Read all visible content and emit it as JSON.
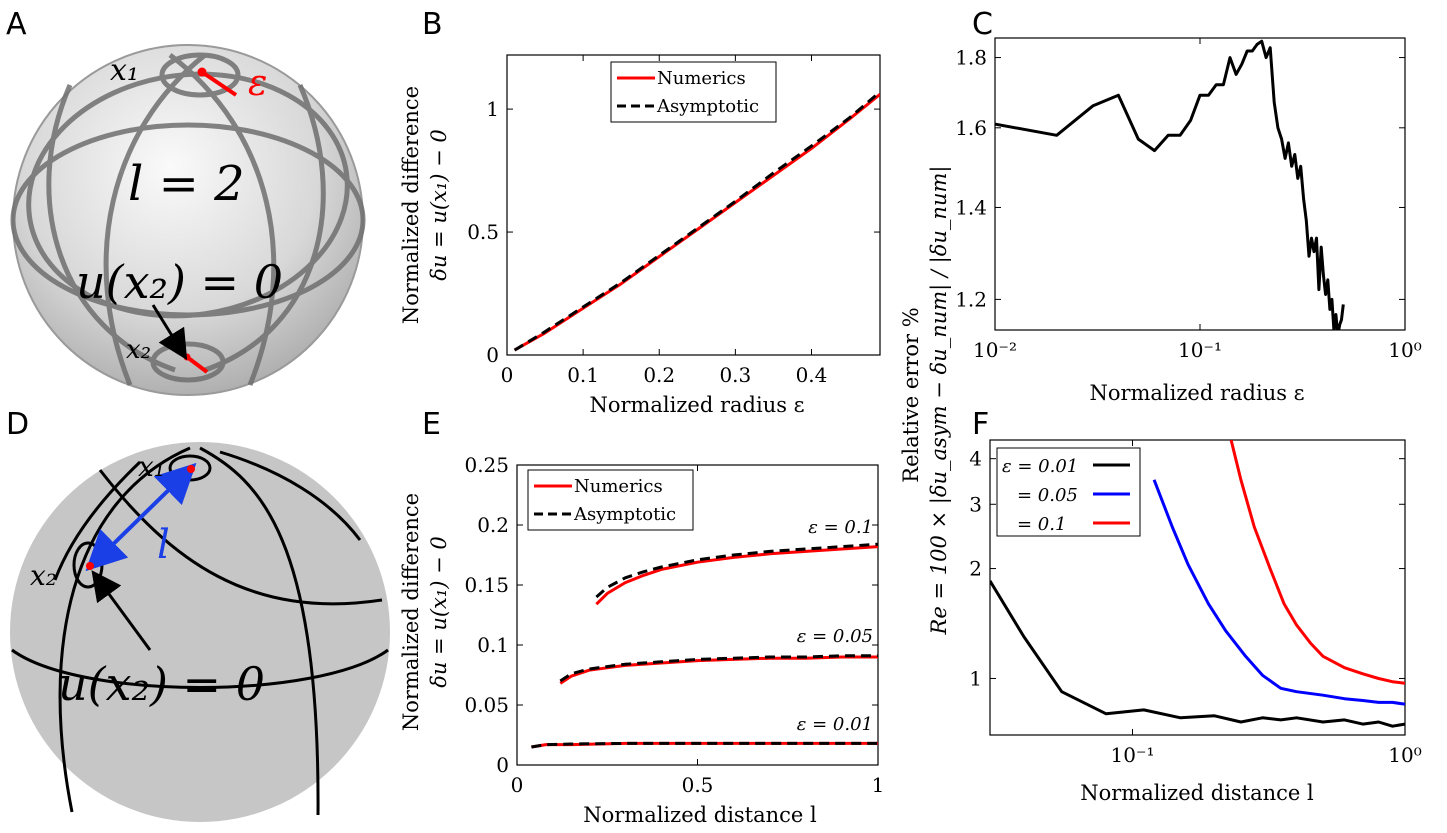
{
  "panels": {
    "A": {
      "letter": "A",
      "label_x1": "x₁",
      "label_eps": "ε",
      "label_l": "l = 2",
      "label_u": "u(x₂) = 0",
      "label_x2": "x₂"
    },
    "D": {
      "letter": "D",
      "label_x1": "x₁",
      "label_l": "l",
      "label_x2": "x₂",
      "label_u": "u(x₂) = 0"
    },
    "B": {
      "letter": "B"
    },
    "C": {
      "letter": "C"
    },
    "E": {
      "letter": "E"
    },
    "F": {
      "letter": "F"
    }
  },
  "colors": {
    "numerics": "#ff0000",
    "asymptotic": "#000000",
    "eps001": "#000000",
    "eps005": "#0000ff",
    "eps01": "#ff0000",
    "arrow_l": "#1a3fe6"
  },
  "chart_data": [
    {
      "id": "B",
      "type": "line",
      "xlabel": "Normalized radius ε",
      "ylabel_line1": "Normalized difference",
      "ylabel_line2": "δu = u(x₁) − 0",
      "xlim": [
        0,
        0.49
      ],
      "ylim": [
        0,
        1.22
      ],
      "xticks": [
        0,
        0.1,
        0.2,
        0.3,
        0.4
      ],
      "xtick_labels": [
        "0",
        "0.1",
        "0.2",
        "0.3",
        "0.4"
      ],
      "yticks": [
        0,
        0.5,
        1
      ],
      "ytick_labels": [
        "0",
        "0.5",
        "1"
      ],
      "legend": [
        "Numerics",
        "Asymptotic"
      ],
      "legend_position": "top",
      "series": [
        {
          "name": "Numerics",
          "style": "solid",
          "x": [
            0.01,
            0.05,
            0.1,
            0.15,
            0.2,
            0.25,
            0.3,
            0.35,
            0.4,
            0.45,
            0.49
          ],
          "y": [
            0.02,
            0.09,
            0.19,
            0.29,
            0.4,
            0.51,
            0.62,
            0.73,
            0.84,
            0.96,
            1.06
          ]
        },
        {
          "name": "Asymptotic",
          "style": "dashed",
          "x": [
            0.01,
            0.05,
            0.1,
            0.15,
            0.2,
            0.25,
            0.3,
            0.35,
            0.4,
            0.45,
            0.49
          ],
          "y": [
            0.02,
            0.095,
            0.195,
            0.295,
            0.405,
            0.515,
            0.625,
            0.74,
            0.85,
            0.965,
            1.07
          ]
        }
      ]
    },
    {
      "id": "C",
      "type": "line",
      "xscale": "log",
      "yscale": "log",
      "xlabel": "Normalized radius ε",
      "ylabel_line1": "Relative error %",
      "ylabel_line2": "Re = 100 × |δu_asym − δu_num| / |δu_num|",
      "xlim": [
        0.01,
        1
      ],
      "ylim": [
        1.14,
        1.86
      ],
      "xticks": [
        0.01,
        0.1,
        1
      ],
      "xtick_labels": [
        "10⁻²",
        "10⁻¹",
        "10⁰"
      ],
      "yticks": [
        1.2,
        1.4,
        1.6,
        1.8
      ],
      "ytick_labels": [
        "1.2",
        "1.4",
        "1.6",
        "1.8"
      ],
      "series": [
        {
          "name": "",
          "style": "solid",
          "x": [
            0.01,
            0.02,
            0.03,
            0.04,
            0.05,
            0.06,
            0.07,
            0.08,
            0.09,
            0.1,
            0.11,
            0.12,
            0.13,
            0.14,
            0.15,
            0.16,
            0.17,
            0.18,
            0.19,
            0.2,
            0.21,
            0.22,
            0.23,
            0.24,
            0.25,
            0.26,
            0.27,
            0.28,
            0.29,
            0.3,
            0.31,
            0.32,
            0.33,
            0.34,
            0.35,
            0.36,
            0.37,
            0.38,
            0.39,
            0.4,
            0.41,
            0.42,
            0.43,
            0.44,
            0.45,
            0.46,
            0.47,
            0.48,
            0.49,
            0.5
          ],
          "y": [
            1.61,
            1.58,
            1.66,
            1.69,
            1.57,
            1.54,
            1.58,
            1.58,
            1.62,
            1.69,
            1.69,
            1.72,
            1.72,
            1.8,
            1.75,
            1.78,
            1.82,
            1.82,
            1.84,
            1.85,
            1.8,
            1.83,
            1.67,
            1.6,
            1.57,
            1.52,
            1.56,
            1.5,
            1.53,
            1.47,
            1.5,
            1.42,
            1.37,
            1.29,
            1.33,
            1.3,
            1.33,
            1.22,
            1.31,
            1.25,
            1.21,
            1.24,
            1.18,
            1.2,
            1.14,
            1.17,
            1.13,
            1.15,
            1.16,
            1.19
          ]
        }
      ]
    },
    {
      "id": "E",
      "type": "line",
      "xlabel": "Normalized distance l",
      "ylabel_line1": "Normalized difference",
      "ylabel_line2": "δu = u(x₁) − 0",
      "xlim": [
        0,
        1
      ],
      "ylim": [
        0,
        0.25
      ],
      "xticks": [
        0,
        0.5,
        1
      ],
      "xtick_labels": [
        "0",
        "0.5",
        "1"
      ],
      "yticks": [
        0,
        0.05,
        0.1,
        0.15,
        0.2,
        0.25
      ],
      "ytick_labels": [
        "0",
        "0.05",
        "0.1",
        "0.15",
        "0.2",
        "0.25"
      ],
      "legend": [
        "Numerics",
        "Asymptotic"
      ],
      "legend_position": "top-left",
      "annotations": [
        "ε = 0.1",
        "ε = 0.05",
        "ε = 0.01"
      ],
      "series": [
        {
          "name": "Numerics",
          "group": "ε = 0.1",
          "style": "solid",
          "x": [
            0.22,
            0.25,
            0.3,
            0.35,
            0.4,
            0.5,
            0.6,
            0.7,
            0.8,
            0.9,
            1.0
          ],
          "y": [
            0.134,
            0.143,
            0.152,
            0.158,
            0.163,
            0.169,
            0.173,
            0.176,
            0.178,
            0.18,
            0.182
          ]
        },
        {
          "name": "Asymptotic",
          "group": "ε = 0.1",
          "style": "dashed",
          "x": [
            0.22,
            0.25,
            0.3,
            0.35,
            0.4,
            0.5,
            0.6,
            0.7,
            0.8,
            0.9,
            1.0
          ],
          "y": [
            0.14,
            0.148,
            0.156,
            0.161,
            0.165,
            0.171,
            0.175,
            0.178,
            0.18,
            0.182,
            0.184
          ]
        },
        {
          "name": "Numerics",
          "group": "ε = 0.05",
          "style": "solid",
          "x": [
            0.12,
            0.15,
            0.2,
            0.3,
            0.4,
            0.5,
            0.6,
            0.7,
            0.8,
            0.9,
            1.0
          ],
          "y": [
            0.068,
            0.074,
            0.079,
            0.083,
            0.085,
            0.087,
            0.088,
            0.089,
            0.089,
            0.09,
            0.09
          ]
        },
        {
          "name": "Asymptotic",
          "group": "ε = 0.05",
          "style": "dashed",
          "x": [
            0.12,
            0.15,
            0.2,
            0.3,
            0.4,
            0.5,
            0.6,
            0.7,
            0.8,
            0.9,
            1.0
          ],
          "y": [
            0.07,
            0.076,
            0.08,
            0.084,
            0.086,
            0.088,
            0.089,
            0.09,
            0.09,
            0.091,
            0.091
          ]
        },
        {
          "name": "Numerics",
          "group": "ε = 0.01",
          "style": "solid",
          "x": [
            0.04,
            0.08,
            0.15,
            0.3,
            0.5,
            0.7,
            0.9,
            1.0
          ],
          "y": [
            0.015,
            0.017,
            0.017,
            0.018,
            0.018,
            0.018,
            0.018,
            0.018
          ]
        },
        {
          "name": "Asymptotic",
          "group": "ε = 0.01",
          "style": "dashed",
          "x": [
            0.04,
            0.08,
            0.15,
            0.3,
            0.5,
            0.7,
            0.9,
            1.0
          ],
          "y": [
            0.015,
            0.017,
            0.0175,
            0.018,
            0.018,
            0.018,
            0.018,
            0.018
          ]
        }
      ]
    },
    {
      "id": "F",
      "type": "line",
      "xscale": "log",
      "yscale": "log",
      "xlabel": "Normalized distance l",
      "xlim": [
        0.03,
        1
      ],
      "ylim": [
        0.7,
        4.5
      ],
      "xticks": [
        0.1,
        1
      ],
      "xtick_labels": [
        "10⁻¹",
        "10⁰"
      ],
      "yticks": [
        1,
        2,
        3,
        4
      ],
      "ytick_labels": [
        "1",
        "2",
        "3",
        "4"
      ],
      "legend": [
        "ε = 0.01",
        "= 0.05",
        "= 0.1"
      ],
      "legend_position": "top-left",
      "series": [
        {
          "name": "ε = 0.01",
          "x": [
            0.03,
            0.04,
            0.055,
            0.08,
            0.11,
            0.15,
            0.2,
            0.25,
            0.3,
            0.35,
            0.4,
            0.5,
            0.6,
            0.7,
            0.8,
            0.9,
            1.0
          ],
          "y": [
            1.85,
            1.3,
            0.92,
            0.8,
            0.82,
            0.78,
            0.79,
            0.76,
            0.78,
            0.77,
            0.78,
            0.76,
            0.77,
            0.75,
            0.76,
            0.74,
            0.75
          ]
        },
        {
          "name": "= 0.05",
          "x": [
            0.12,
            0.14,
            0.16,
            0.19,
            0.22,
            0.26,
            0.3,
            0.35,
            0.4,
            0.5,
            0.6,
            0.7,
            0.8,
            0.9,
            1.0
          ],
          "y": [
            3.5,
            2.6,
            2.05,
            1.6,
            1.35,
            1.15,
            1.02,
            0.94,
            0.92,
            0.9,
            0.88,
            0.87,
            0.86,
            0.86,
            0.85
          ]
        },
        {
          "name": "= 0.1",
          "x": [
            0.23,
            0.25,
            0.28,
            0.32,
            0.36,
            0.4,
            0.45,
            0.5,
            0.6,
            0.7,
            0.8,
            0.9,
            1.0
          ],
          "y": [
            4.5,
            3.5,
            2.6,
            2.0,
            1.6,
            1.4,
            1.25,
            1.15,
            1.07,
            1.03,
            1.0,
            0.98,
            0.97
          ]
        }
      ]
    }
  ]
}
